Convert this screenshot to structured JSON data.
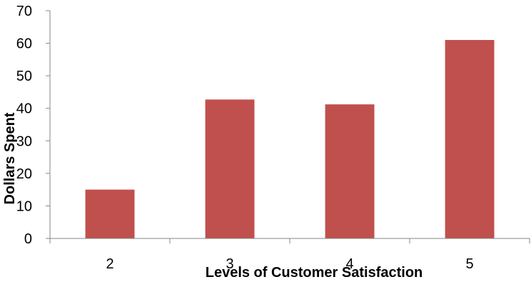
{
  "chart_data": {
    "type": "bar",
    "title": "",
    "xlabel": "Levels of Customer Satisfaction",
    "ylabel": "Dollars Spent",
    "categories": [
      "2",
      "3",
      "4",
      "5"
    ],
    "values": [
      15,
      42.7,
      41.2,
      61
    ],
    "ylim": [
      0,
      70
    ],
    "yticks": [
      "0",
      "10",
      "20",
      "30",
      "40",
      "50",
      "60",
      "70"
    ],
    "grid": false,
    "legend": "none",
    "bar_color": "#C0504D",
    "axis_color": "#868686"
  }
}
